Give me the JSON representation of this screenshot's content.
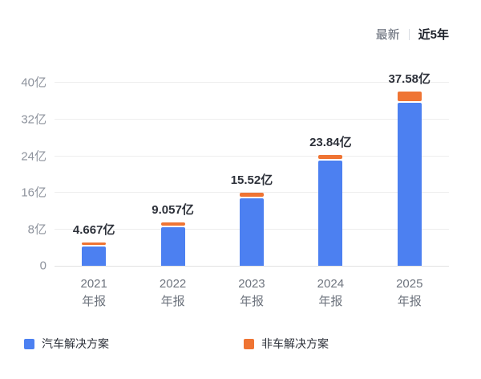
{
  "toolbar": {
    "latest": "最新",
    "five_year": "近5年"
  },
  "chart_data": {
    "type": "bar",
    "stacked": true,
    "title": "",
    "xlabel": "",
    "ylabel": "",
    "unit": "亿",
    "ylim": [
      0,
      40
    ],
    "yticks": [
      "40亿",
      "32亿",
      "24亿",
      "16亿",
      "8亿",
      "0"
    ],
    "grid": true,
    "legend_position": "bottom",
    "categories": [
      "2021 年报",
      "2022 年报",
      "2023 年报",
      "2024 年报",
      "2025 年报"
    ],
    "categories_line1": [
      "2021",
      "2022",
      "2023",
      "2024",
      "2025"
    ],
    "categories_line2": [
      "年报",
      "年报",
      "年报",
      "年报",
      "年报"
    ],
    "series": [
      {
        "name": "汽车解决方案",
        "color": "#4c80f1",
        "values": [
          4.23,
          8.36,
          14.62,
          22.94,
          35.38
        ]
      },
      {
        "name": "非车解决方案",
        "color": "#ef7433",
        "values": [
          0.44,
          0.7,
          0.9,
          0.9,
          2.2
        ]
      }
    ],
    "totals": [
      4.667,
      9.057,
      15.52,
      23.84,
      37.58
    ],
    "total_labels": [
      "4.667亿",
      "9.057亿",
      "15.52亿",
      "23.84亿",
      "37.58亿"
    ]
  }
}
